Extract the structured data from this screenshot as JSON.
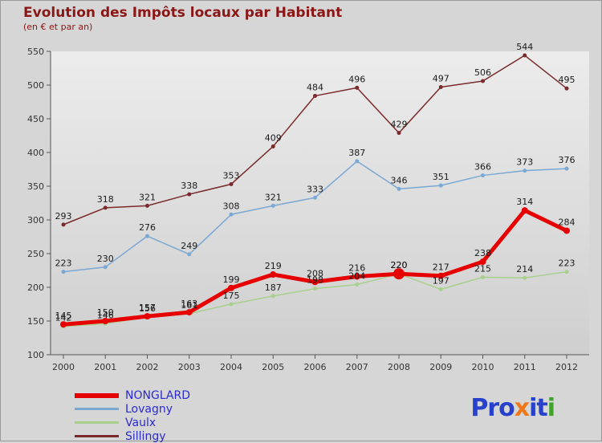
{
  "title": "Evolution des Impôts locaux par Habitant",
  "subtitle": "(en € et par an)",
  "colors": {
    "background": "#d6d6d6",
    "plot_top": "#ececec",
    "plot_bottom": "#cfcfcf",
    "axis": "#555555",
    "data_label": "#1a1a1a",
    "tick_text": "#333333",
    "title_text": "#8b1616"
  },
  "chart_data": {
    "type": "line",
    "x": [
      2000,
      2001,
      2002,
      2003,
      2004,
      2005,
      2006,
      2007,
      2008,
      2009,
      2010,
      2011,
      2012
    ],
    "series": [
      {
        "name": "NONGLARD",
        "color": "#e60000",
        "width": 5,
        "marker_r": 4,
        "values": [
          145,
          150,
          157,
          163,
          199,
          219,
          208,
          216,
          220,
          217,
          238,
          314,
          284
        ]
      },
      {
        "name": "Lovagny",
        "color": "#7aa8d4",
        "width": 1.5,
        "marker_r": 2.5,
        "values": [
          223,
          230,
          276,
          249,
          308,
          321,
          333,
          387,
          346,
          351,
          366,
          373,
          376
        ]
      },
      {
        "name": "Vaulx",
        "color": "#a8d08d",
        "width": 1.5,
        "marker_r": 2.5,
        "values": [
          142,
          146,
          156,
          161,
          175,
          187,
          198,
          204,
          220,
          197,
          215,
          214,
          223
        ]
      },
      {
        "name": "Sillingy",
        "color": "#7a2a2a",
        "width": 1.5,
        "marker_r": 2.5,
        "values": [
          293,
          318,
          321,
          338,
          353,
          409,
          484,
          496,
          429,
          497,
          506,
          544,
          495
        ]
      }
    ],
    "highlight": {
      "series_index": 0,
      "point_index": 8,
      "radius": 7
    },
    "ylim": [
      100,
      550
    ],
    "yticks": [
      100,
      150,
      200,
      250,
      300,
      350,
      400,
      450,
      500,
      550
    ],
    "grid": false,
    "legend_position": "bottom-left"
  },
  "legend": {
    "text_color": "#2b2bd0"
  },
  "logo": {
    "text_parts": [
      {
        "text": "Pro",
        "color": "#2741cc"
      },
      {
        "text": "x",
        "color": "#f07818"
      },
      {
        "text": "it",
        "color": "#2741cc"
      },
      {
        "text": "i",
        "color": "#3fa32a"
      }
    ]
  }
}
